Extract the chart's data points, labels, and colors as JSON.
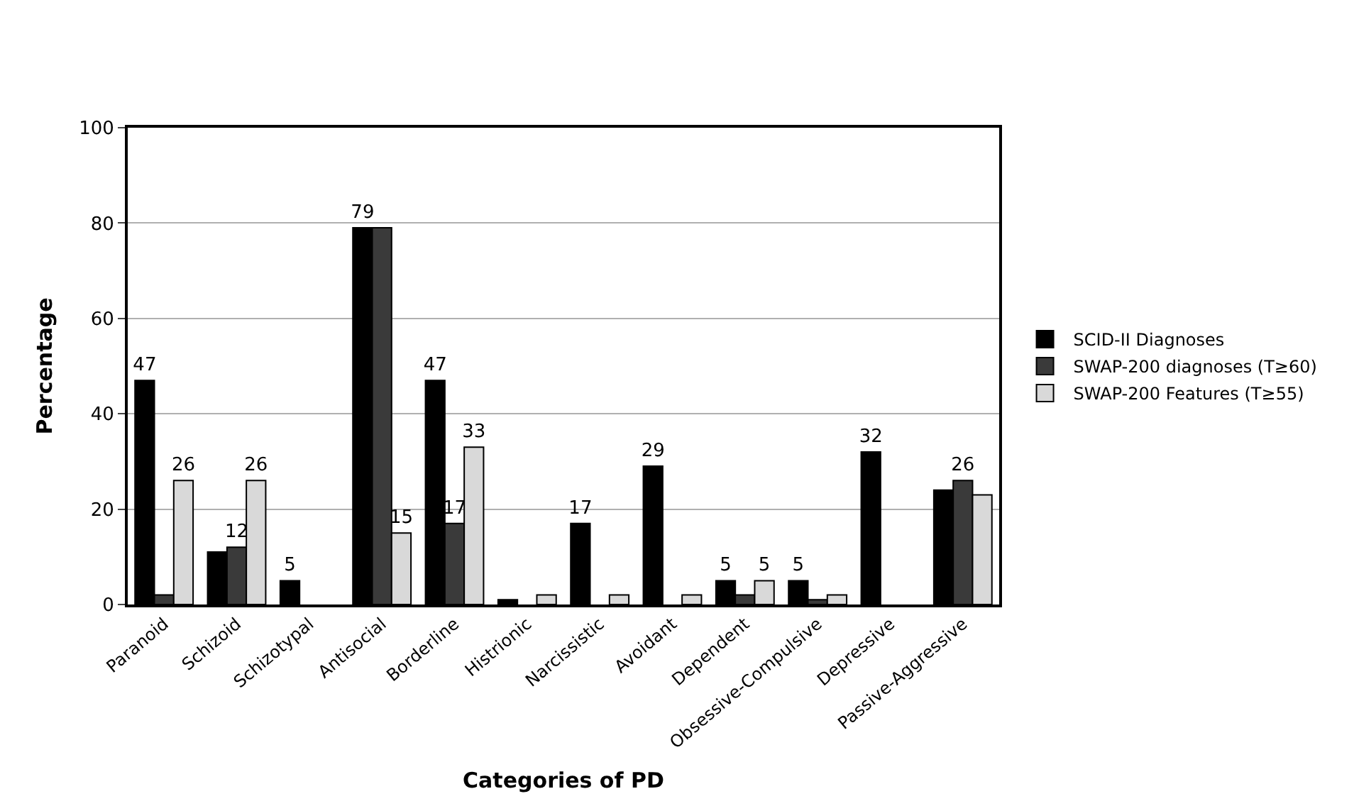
{
  "chart_data": {
    "type": "bar",
    "xlabel": "Categories of PD",
    "ylabel": "Percentage",
    "categories": [
      "Paranoid",
      "Schizoid",
      "Schizotypal",
      "Antisocial",
      "Borderline",
      "Histrionic",
      "Narcissistic",
      "Avoidant",
      "Dependent",
      "Obsessive-Compulsive",
      "Depressive",
      "Passive-Aggressive"
    ],
    "series": [
      {
        "name": "SCID-II Diagnoses",
        "color": "#000000",
        "values": [
          47,
          11,
          5,
          79,
          47,
          1,
          17,
          29,
          5,
          5,
          32,
          24
        ],
        "value_labels": [
          "47",
          null,
          "5",
          "79",
          "47",
          null,
          "17",
          "29",
          "5",
          "5",
          "32",
          null
        ]
      },
      {
        "name": "SWAP-200 diagnoses (T≥60)",
        "color": "#3a3a3a",
        "values": [
          2,
          12,
          null,
          79,
          17,
          null,
          null,
          null,
          2,
          1,
          null,
          26
        ],
        "value_labels": [
          null,
          "12",
          null,
          null,
          "17",
          null,
          null,
          null,
          null,
          null,
          null,
          "26"
        ]
      },
      {
        "name": "SWAP-200 Features (T≥55)",
        "color": "#d9d9d9",
        "values": [
          26,
          26,
          null,
          15,
          33,
          2,
          2,
          2,
          5,
          2,
          null,
          23
        ],
        "value_labels": [
          "26",
          "26",
          null,
          "15",
          "33",
          null,
          null,
          null,
          "5",
          null,
          null,
          null
        ]
      }
    ],
    "ylim": [
      0,
      100
    ],
    "yticks": [
      0,
      20,
      40,
      60,
      80,
      100
    ],
    "grid": "y",
    "legend": "right"
  }
}
